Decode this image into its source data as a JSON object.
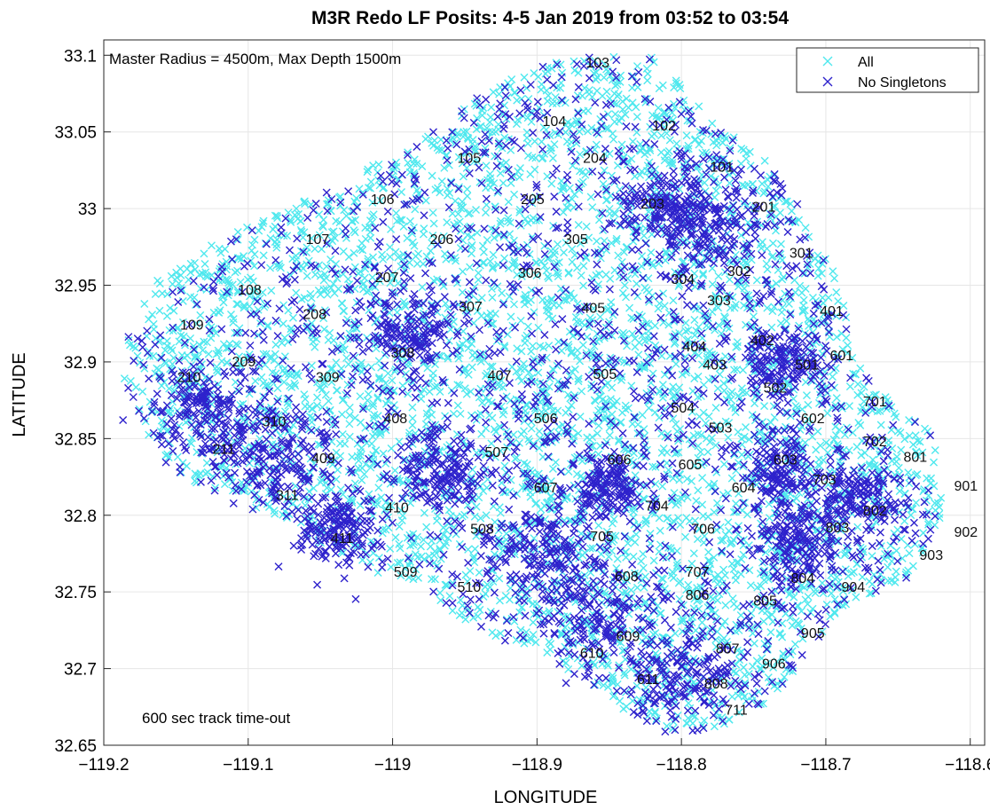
{
  "chart_data": {
    "type": "scatter",
    "title": "M3R Redo LF Posits: 4-5 Jan 2019 from 03:52 to 03:54",
    "xlabel": "LONGITUDE",
    "ylabel": "LATITUDE",
    "xlim": [
      -119.2,
      -118.59
    ],
    "ylim": [
      32.65,
      33.11
    ],
    "xticks": [
      -119.2,
      -119.1,
      -119,
      -118.9,
      -118.8,
      -118.7,
      -118.6
    ],
    "xtick_labels": [
      "−119.2",
      "−119.1",
      "−119",
      "−118.9",
      "−118.8",
      "−118.7",
      "−118.6"
    ],
    "yticks": [
      32.65,
      32.7,
      32.75,
      32.8,
      32.85,
      32.9,
      32.95,
      33,
      33.05,
      33.1
    ],
    "ytick_labels": [
      "32.65",
      "32.7",
      "32.75",
      "32.8",
      "32.85",
      "32.9",
      "32.95",
      "33",
      "33.05",
      "33.1"
    ],
    "grid": true,
    "legend": {
      "position": "top-right"
    },
    "annotations": [
      "Master Radius = 4500m, Max Depth 1500m",
      "600 sec track time-out"
    ],
    "series": [
      {
        "name": "All",
        "color": "#4fe8ee",
        "marker": "x",
        "description_region": {
          "lon": [
            -119.19,
            -118.62
          ],
          "lat": [
            32.66,
            33.1
          ]
        }
      },
      {
        "name": "No Singletons",
        "color": "#2e22cc",
        "marker": "x",
        "clusters": [
          {
            "lon": -119.13,
            "lat": 32.87,
            "w": 0.02
          },
          {
            "lon": -119.08,
            "lat": 32.84,
            "w": 0.02
          },
          {
            "lon": -119.04,
            "lat": 32.79,
            "w": 0.015
          },
          {
            "lon": -118.99,
            "lat": 32.92,
            "w": 0.015
          },
          {
            "lon": -118.97,
            "lat": 32.83,
            "w": 0.015
          },
          {
            "lon": -118.9,
            "lat": 32.78,
            "w": 0.02
          },
          {
            "lon": -118.86,
            "lat": 32.74,
            "w": 0.02
          },
          {
            "lon": -118.8,
            "lat": 32.7,
            "w": 0.02
          },
          {
            "lon": -118.78,
            "lat": 32.99,
            "w": 0.02
          },
          {
            "lon": -118.81,
            "lat": 33.0,
            "w": 0.015
          },
          {
            "lon": -118.73,
            "lat": 32.9,
            "w": 0.015
          },
          {
            "lon": -118.73,
            "lat": 32.83,
            "w": 0.015
          },
          {
            "lon": -118.72,
            "lat": 32.78,
            "w": 0.015
          },
          {
            "lon": -118.68,
            "lat": 32.81,
            "w": 0.015
          },
          {
            "lon": -118.85,
            "lat": 32.82,
            "w": 0.012
          }
        ]
      }
    ],
    "hydrophones": [
      {
        "label": "103",
        "lon": -118.858,
        "lat": 33.092
      },
      {
        "label": "104",
        "lon": -118.888,
        "lat": 33.054
      },
      {
        "label": "102",
        "lon": -118.812,
        "lat": 33.051
      },
      {
        "label": "105",
        "lon": -118.947,
        "lat": 33.03
      },
      {
        "label": "204",
        "lon": -118.86,
        "lat": 33.03
      },
      {
        "label": "101",
        "lon": -118.772,
        "lat": 33.024
      },
      {
        "label": "106",
        "lon": -119.007,
        "lat": 33.003
      },
      {
        "label": "205",
        "lon": -118.903,
        "lat": 33.003
      },
      {
        "label": "203",
        "lon": -118.82,
        "lat": 33.0
      },
      {
        "label": "201",
        "lon": -118.743,
        "lat": 32.998
      },
      {
        "label": "107",
        "lon": -119.052,
        "lat": 32.977
      },
      {
        "label": "206",
        "lon": -118.966,
        "lat": 32.977
      },
      {
        "label": "305",
        "lon": -118.873,
        "lat": 32.977
      },
      {
        "label": "301",
        "lon": -118.717,
        "lat": 32.968
      },
      {
        "label": "207",
        "lon": -119.004,
        "lat": 32.952
      },
      {
        "label": "306",
        "lon": -118.905,
        "lat": 32.955
      },
      {
        "label": "304",
        "lon": -118.799,
        "lat": 32.951
      },
      {
        "label": "302",
        "lon": -118.76,
        "lat": 32.956
      },
      {
        "label": "108",
        "lon": -119.099,
        "lat": 32.944
      },
      {
        "label": "303",
        "lon": -118.774,
        "lat": 32.937
      },
      {
        "label": "208",
        "lon": -119.054,
        "lat": 32.928
      },
      {
        "label": "307",
        "lon": -118.946,
        "lat": 32.933
      },
      {
        "label": "405",
        "lon": -118.861,
        "lat": 32.932
      },
      {
        "label": "401",
        "lon": -118.696,
        "lat": 32.93
      },
      {
        "label": "109",
        "lon": -119.139,
        "lat": 32.921
      },
      {
        "label": "402",
        "lon": -118.744,
        "lat": 32.911
      },
      {
        "label": "404",
        "lon": -118.791,
        "lat": 32.907
      },
      {
        "label": "308",
        "lon": -118.993,
        "lat": 32.903
      },
      {
        "label": "601",
        "lon": -118.689,
        "lat": 32.901
      },
      {
        "label": "209",
        "lon": -119.103,
        "lat": 32.897
      },
      {
        "label": "403",
        "lon": -118.777,
        "lat": 32.895
      },
      {
        "label": "501",
        "lon": -118.713,
        "lat": 32.895
      },
      {
        "label": "210",
        "lon": -119.141,
        "lat": 32.887
      },
      {
        "label": "309",
        "lon": -119.045,
        "lat": 32.887
      },
      {
        "label": "407",
        "lon": -118.926,
        "lat": 32.888
      },
      {
        "label": "505",
        "lon": -118.853,
        "lat": 32.889
      },
      {
        "label": "502",
        "lon": -118.735,
        "lat": 32.88
      },
      {
        "label": "701",
        "lon": -118.666,
        "lat": 32.871
      },
      {
        "label": "504",
        "lon": -118.799,
        "lat": 32.867
      },
      {
        "label": "310",
        "lon": -119.082,
        "lat": 32.858
      },
      {
        "label": "408",
        "lon": -118.998,
        "lat": 32.86
      },
      {
        "label": "506",
        "lon": -118.894,
        "lat": 32.86
      },
      {
        "label": "602",
        "lon": -118.709,
        "lat": 32.86
      },
      {
        "label": "503",
        "lon": -118.773,
        "lat": 32.854
      },
      {
        "label": "702",
        "lon": -118.666,
        "lat": 32.845
      },
      {
        "label": "211",
        "lon": -119.117,
        "lat": 32.84
      },
      {
        "label": "507",
        "lon": -118.928,
        "lat": 32.838
      },
      {
        "label": "409",
        "lon": -119.048,
        "lat": 32.834
      },
      {
        "label": "606",
        "lon": -118.843,
        "lat": 32.833
      },
      {
        "label": "605",
        "lon": -118.794,
        "lat": 32.83
      },
      {
        "label": "603",
        "lon": -118.728,
        "lat": 32.833
      },
      {
        "label": "801",
        "lon": -118.638,
        "lat": 32.835
      },
      {
        "label": "703",
        "lon": -118.701,
        "lat": 32.82
      },
      {
        "label": "604",
        "lon": -118.757,
        "lat": 32.815
      },
      {
        "label": "901",
        "lon": -118.603,
        "lat": 32.816
      },
      {
        "label": "607",
        "lon": -118.894,
        "lat": 32.815
      },
      {
        "label": "311",
        "lon": -119.073,
        "lat": 32.81
      },
      {
        "label": "410",
        "lon": -118.997,
        "lat": 32.802
      },
      {
        "label": "704",
        "lon": -118.817,
        "lat": 32.803
      },
      {
        "label": "802",
        "lon": -118.666,
        "lat": 32.8
      },
      {
        "label": "508",
        "lon": -118.938,
        "lat": 32.788
      },
      {
        "label": "705",
        "lon": -118.855,
        "lat": 32.783
      },
      {
        "label": "706",
        "lon": -118.785,
        "lat": 32.788
      },
      {
        "label": "803",
        "lon": -118.692,
        "lat": 32.789
      },
      {
        "label": "902",
        "lon": -118.603,
        "lat": 32.786
      },
      {
        "label": "411",
        "lon": -119.035,
        "lat": 32.782
      },
      {
        "label": "903",
        "lon": -118.627,
        "lat": 32.771
      },
      {
        "label": "509",
        "lon": -118.991,
        "lat": 32.76
      },
      {
        "label": "608",
        "lon": -118.838,
        "lat": 32.757
      },
      {
        "label": "804",
        "lon": -118.716,
        "lat": 32.756
      },
      {
        "label": "904",
        "lon": -118.681,
        "lat": 32.75
      },
      {
        "label": "510",
        "lon": -118.947,
        "lat": 32.75
      },
      {
        "label": "707",
        "lon": -118.789,
        "lat": 32.76
      },
      {
        "label": "805",
        "lon": -118.742,
        "lat": 32.741
      },
      {
        "label": "806",
        "lon": -118.789,
        "lat": 32.745
      },
      {
        "label": "905",
        "lon": -118.709,
        "lat": 32.72
      },
      {
        "label": "609",
        "lon": -118.837,
        "lat": 32.718
      },
      {
        "label": "610",
        "lon": -118.862,
        "lat": 32.707
      },
      {
        "label": "807",
        "lon": -118.768,
        "lat": 32.71
      },
      {
        "label": "906",
        "lon": -118.736,
        "lat": 32.7
      },
      {
        "label": "808",
        "lon": -118.776,
        "lat": 32.687
      },
      {
        "label": "611",
        "lon": -118.823,
        "lat": 32.69
      },
      {
        "label": "711",
        "lon": -118.762,
        "lat": 32.67
      }
    ]
  }
}
